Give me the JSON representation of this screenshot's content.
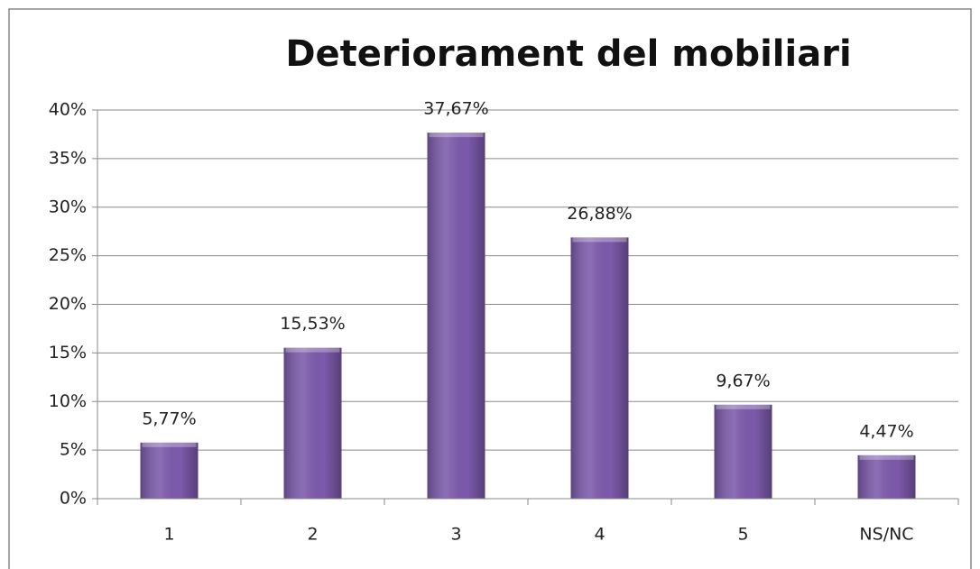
{
  "chart_data": {
    "type": "bar",
    "title": "Deteriorament del mobiliari",
    "categories": [
      "1",
      "2",
      "3",
      "4",
      "5",
      "NS/NC"
    ],
    "values": [
      5.77,
      15.53,
      37.67,
      26.88,
      9.67,
      4.47
    ],
    "value_labels": [
      "5,77%",
      "15,53%",
      "37,67%",
      "26,88%",
      "9,67%",
      "4,47%"
    ],
    "color": "#7b5aab",
    "ylim": [
      0,
      40
    ],
    "yticks": [
      {
        "value": 0,
        "label": "0%"
      },
      {
        "value": 5,
        "label": "5%"
      },
      {
        "value": 10,
        "label": "10%"
      },
      {
        "value": 15,
        "label": "15%"
      },
      {
        "value": 20,
        "label": "20%"
      },
      {
        "value": 25,
        "label": "25%"
      },
      {
        "value": 30,
        "label": "30%"
      },
      {
        "value": 35,
        "label": "35%"
      },
      {
        "value": 40,
        "label": "40%"
      }
    ],
    "grid": true
  }
}
